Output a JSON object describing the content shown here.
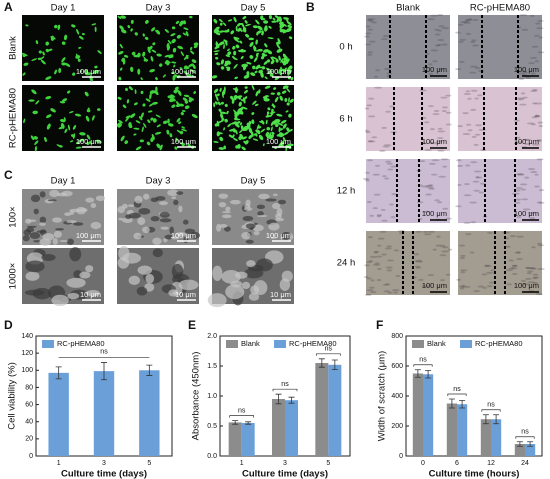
{
  "panels": {
    "A": {
      "label": "A",
      "columns": [
        "Day 1",
        "Day 3",
        "Day 5"
      ],
      "rows": [
        "Blank",
        "RC-pHEMA80"
      ],
      "scale_bar": "100 μm"
    },
    "B": {
      "label": "B",
      "columns": [
        "Blank",
        "RC-pHEMA80"
      ],
      "rows": [
        "0 h",
        "6 h",
        "12 h",
        "24 h"
      ],
      "scale_bar": "100 μm"
    },
    "C": {
      "label": "C",
      "columns": [
        "Day 1",
        "Day 3",
        "Day 5"
      ],
      "rows": [
        "100×",
        "1000×"
      ],
      "scale_bars": [
        "100 μm",
        "10 μm"
      ]
    }
  },
  "chart_data": [
    {
      "type": "bar",
      "panel_label": "D",
      "xlabel": "Culture time (days)",
      "ylabel": "Cell viability (%)",
      "categories": [
        "1",
        "3",
        "5"
      ],
      "series": [
        {
          "name": "RC-pHEMA80",
          "color": "#6a9fd8",
          "values": [
            97,
            99,
            100
          ],
          "errors": [
            7,
            10,
            6
          ]
        }
      ],
      "ylim": [
        0,
        140
      ],
      "yticks": [
        0,
        20,
        40,
        60,
        80,
        100,
        120,
        140
      ],
      "annotations": [
        "ns"
      ]
    },
    {
      "type": "bar",
      "panel_label": "E",
      "xlabel": "Culture time (days)",
      "ylabel": "Absorbance (450nm)",
      "categories": [
        "1",
        "3",
        "5"
      ],
      "series": [
        {
          "name": "Blank",
          "color": "#8c8c8c",
          "values": [
            0.56,
            0.95,
            1.55
          ],
          "errors": [
            0.03,
            0.08,
            0.07
          ]
        },
        {
          "name": "RC-pHEMA80",
          "color": "#6a9fd8",
          "values": [
            0.55,
            0.93,
            1.52
          ],
          "errors": [
            0.02,
            0.05,
            0.08
          ]
        }
      ],
      "ylim": [
        0,
        2.0
      ],
      "yticks": [
        {
          "value": 0,
          "label": "0.0"
        },
        {
          "value": 0.5,
          "label": "0.5"
        },
        {
          "value": 1,
          "label": "1.0"
        },
        {
          "value": 1.5,
          "label": "1.5"
        },
        {
          "value": 2,
          "label": "2.0"
        }
      ],
      "annotations": [
        "ns",
        "ns",
        "ns"
      ]
    },
    {
      "type": "bar",
      "panel_label": "F",
      "xlabel": "Culture time (hours)",
      "ylabel": "Width of scratch (μm)",
      "categories": [
        "0",
        "6",
        "12",
        "24"
      ],
      "series": [
        {
          "name": "Blank",
          "color": "#8c8c8c",
          "values": [
            550,
            350,
            245,
            80
          ],
          "errors": [
            25,
            30,
            30,
            15
          ]
        },
        {
          "name": "RC-pHEMA80",
          "color": "#6a9fd8",
          "values": [
            545,
            345,
            245,
            80
          ],
          "errors": [
            25,
            25,
            30,
            15
          ]
        }
      ],
      "ylim": [
        0,
        800
      ],
      "yticks": [
        0,
        200,
        400,
        600,
        800
      ],
      "annotations": [
        "ns",
        "ns",
        "ns",
        "ns"
      ]
    }
  ]
}
